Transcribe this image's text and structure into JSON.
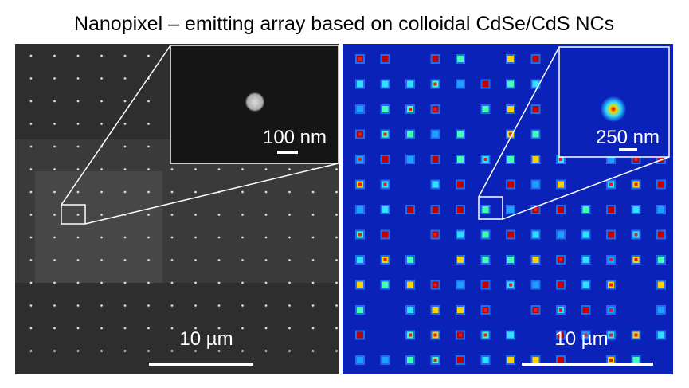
{
  "title": "Nanopixel – emitting array based on colloidal CdSe/CdS NCs",
  "left_panel": {
    "scale_label": "10 µm",
    "inset_scale_label": "100 nm"
  },
  "right_panel": {
    "scale_label": "10 µm",
    "inset_scale_label": "250 nm"
  }
}
